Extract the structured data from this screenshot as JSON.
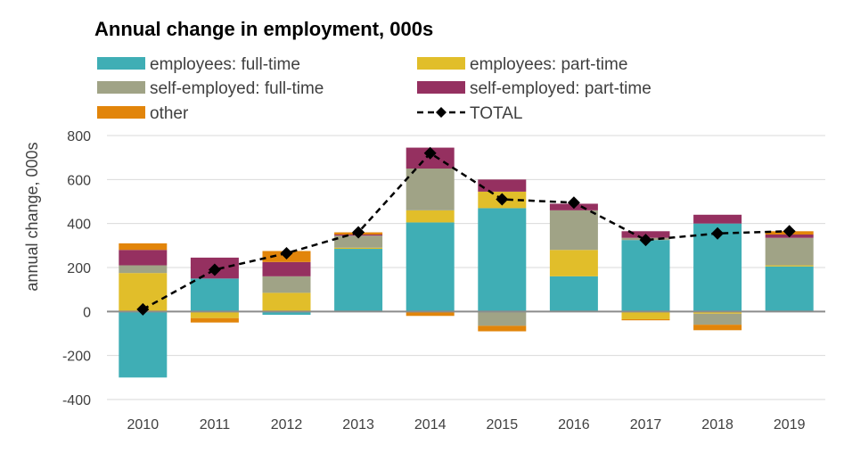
{
  "chart_data": {
    "type": "bar",
    "stacked": true,
    "title": "Annual change in employment, 000s",
    "xlabel": "",
    "ylabel": "annual change, 000s",
    "ylim": [
      -400,
      800
    ],
    "yticks": [
      800,
      600,
      400,
      200,
      0,
      -200,
      -400
    ],
    "grid": true,
    "legend_position": "top",
    "categories": [
      "2010",
      "2011",
      "2012",
      "2013",
      "2014",
      "2015",
      "2016",
      "2017",
      "2018",
      "2019"
    ],
    "series": [
      {
        "name": "employees: full-time",
        "type": "bar",
        "color": "#3FAEB5",
        "values": [
          -300,
          150,
          -15,
          285,
          405,
          470,
          160,
          325,
          400,
          205
        ]
      },
      {
        "name": "employees: part-time",
        "type": "bar",
        "color": "#E1BE2A",
        "values": [
          175,
          -30,
          85,
          5,
          55,
          75,
          120,
          -35,
          -10,
          5
        ]
      },
      {
        "name": "self-employed: full-time",
        "type": "bar",
        "color": "#A0A386",
        "values": [
          35,
          0,
          75,
          55,
          190,
          -65,
          180,
          10,
          -50,
          125
        ]
      },
      {
        "name": "self-employed: part-time",
        "type": "bar",
        "color": "#953060",
        "values": [
          70,
          95,
          65,
          5,
          95,
          55,
          30,
          30,
          40,
          15
        ]
      },
      {
        "name": "other",
        "type": "bar",
        "color": "#E2850A",
        "values": [
          30,
          -20,
          50,
          10,
          -20,
          -25,
          0,
          -5,
          -25,
          15
        ]
      },
      {
        "name": "TOTAL",
        "type": "line",
        "color": "#000000",
        "marker": "diamond",
        "style": "dashed",
        "values": [
          10,
          190,
          265,
          360,
          720,
          510,
          495,
          325,
          355,
          365
        ]
      }
    ]
  }
}
